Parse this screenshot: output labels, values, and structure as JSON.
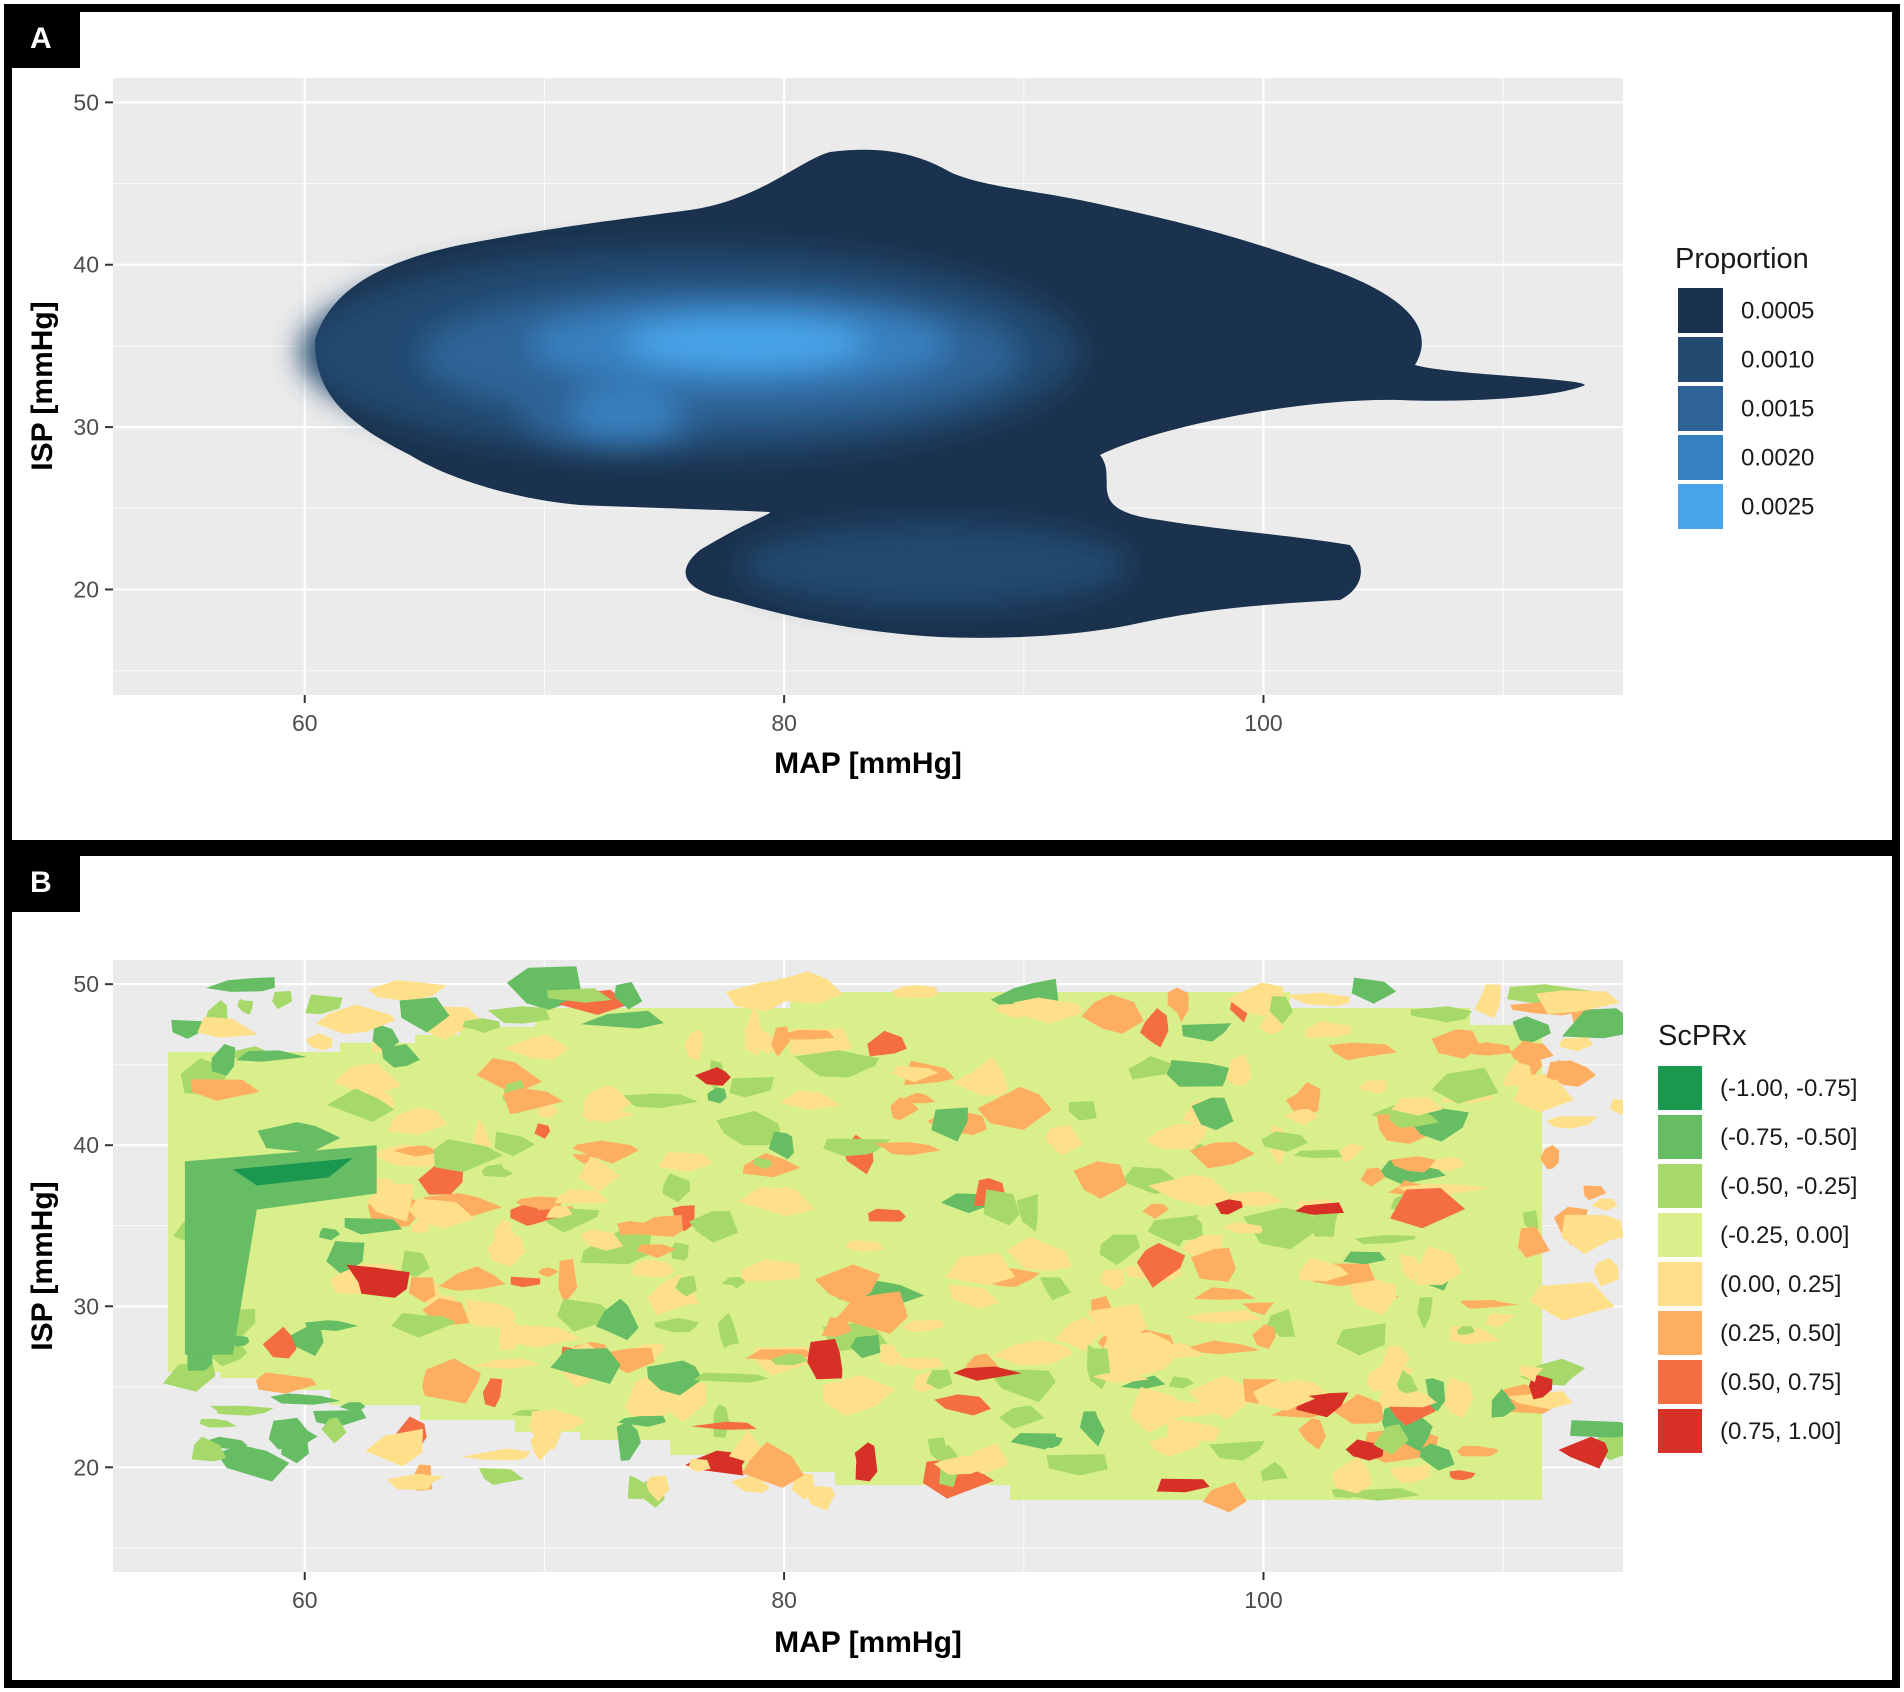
{
  "chart_data": [
    {
      "panel": "A",
      "type": "density-contour",
      "xlabel": "MAP [mmHg]",
      "ylabel": "ISP [mmHg]",
      "xlim": [
        52,
        115
      ],
      "ylim": [
        13.5,
        51.5
      ],
      "x_ticks": [
        60,
        80,
        100
      ],
      "y_ticks": [
        20,
        30,
        40,
        50
      ],
      "grid": true,
      "legend": {
        "title": "Proportion",
        "position": "right",
        "entries": [
          {
            "label": "0.0005",
            "color": "#1a324d"
          },
          {
            "label": "0.0010",
            "color": "#234a70"
          },
          {
            "label": "0.0015",
            "color": "#2d6397"
          },
          {
            "label": "0.0020",
            "color": "#3780c0"
          },
          {
            "label": "0.0025",
            "color": "#48a5ea"
          }
        ]
      },
      "density_peaks": [
        {
          "x": 80,
          "y": 35,
          "proportion": 0.0025
        },
        {
          "x": 75,
          "y": 30.5,
          "proportion": 0.0018
        },
        {
          "x": 88,
          "y": 21.5,
          "proportion": 0.0011
        }
      ],
      "extent": {
        "x": [
          60.5,
          114.5
        ],
        "y": [
          17,
          47
        ]
      }
    },
    {
      "panel": "B",
      "type": "heatmap",
      "xlabel": "MAP [mmHg]",
      "ylabel": "ISP [mmHg]",
      "xlim": [
        52,
        115
      ],
      "ylim": [
        13.5,
        51.5
      ],
      "x_ticks": [
        60,
        80,
        100
      ],
      "y_ticks": [
        20,
        30,
        40,
        50
      ],
      "grid": true,
      "legend": {
        "title": "ScPRx",
        "position": "right",
        "entries": [
          {
            "label": "(-1.00, -0.75]",
            "color": "#1a9850"
          },
          {
            "label": "(-0.75, -0.50]",
            "color": "#66bd63"
          },
          {
            "label": "(-0.50, -0.25]",
            "color": "#a6d96a"
          },
          {
            "label": "(-0.25, 0.00]",
            "color": "#d9ef8b"
          },
          {
            "label": "(0.00, 0.25]",
            "color": "#fee08b"
          },
          {
            "label": "(0.25, 0.50]",
            "color": "#fdae61"
          },
          {
            "label": "(0.50, 0.75]",
            "color": "#f46d43"
          },
          {
            "label": "(0.75, 1.00]",
            "color": "#d73027"
          }
        ]
      },
      "extent": {
        "x": [
          55,
          115
        ],
        "y": [
          18,
          50
        ]
      }
    }
  ]
}
